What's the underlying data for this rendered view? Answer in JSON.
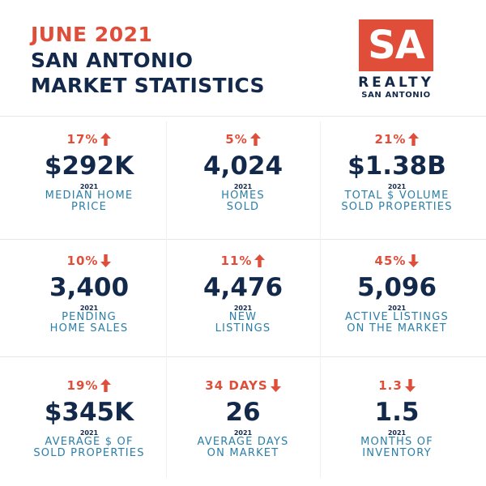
{
  "header": {
    "title": [
      "JUNE 2021",
      "SAN ANTONIO",
      "MARKET STATISTICS"
    ]
  },
  "logo": {
    "mark": "SA",
    "name": "REALTY",
    "city": "SAN ANTONIO"
  },
  "stats": [
    {
      "change": "17%",
      "trend": "up",
      "value": "$292K",
      "year": "2021",
      "label": [
        "MEDIAN HOME",
        "PRICE"
      ]
    },
    {
      "change": "5%",
      "trend": "up",
      "value": "4,024",
      "year": "2021",
      "label": [
        "HOMES",
        "SOLD"
      ]
    },
    {
      "change": "21%",
      "trend": "up",
      "value": "$1.38B",
      "year": "2021",
      "label": [
        "TOTAL $ VOLUME",
        "SOLD PROPERTIES"
      ]
    },
    {
      "change": "10%",
      "trend": "down",
      "value": "3,400",
      "year": "2021",
      "label": [
        "PENDING",
        "HOME SALES"
      ]
    },
    {
      "change": "11%",
      "trend": "up",
      "value": "4,476",
      "year": "2021",
      "label": [
        "NEW",
        "LISTINGS"
      ]
    },
    {
      "change": "45%",
      "trend": "down",
      "value": "5,096",
      "year": "2021",
      "label": [
        "ACTIVE LISTINGS",
        "ON THE MARKET"
      ]
    },
    {
      "change": "19%",
      "trend": "up",
      "value": "$345K",
      "year": "2021",
      "label": [
        "AVERAGE $ OF",
        "SOLD PROPERTIES"
      ]
    },
    {
      "change": "34 DAYS",
      "trend": "down",
      "value": "26",
      "year": "2021",
      "label": [
        "AVERAGE DAYS",
        "ON MARKET"
      ]
    },
    {
      "change": "1.3",
      "trend": "down",
      "value": "1.5",
      "year": "2021",
      "label": [
        "MONTHS OF",
        "INVENTORY"
      ]
    }
  ]
}
